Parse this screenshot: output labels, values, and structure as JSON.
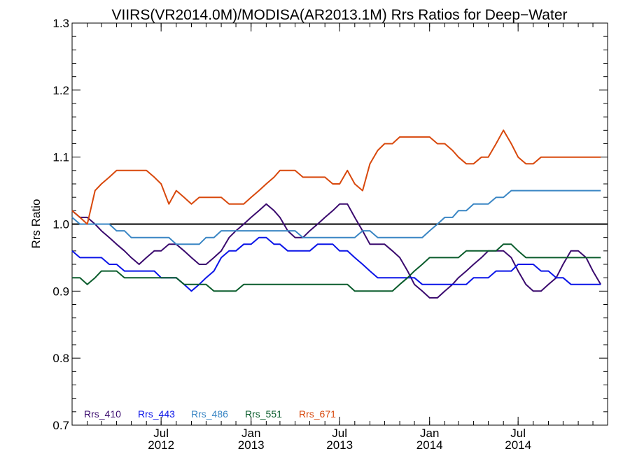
{
  "chart_data": {
    "type": "line",
    "title": "VIIRS(VR2014.0M)/MODISA(AR2013.1M)  Rrs Ratios for Deep−Water",
    "xlabel": "",
    "ylabel": "Rrs Ratio",
    "ylim": [
      0.7,
      1.3
    ],
    "xlim": [
      "2012-01-01",
      "2014-12-31"
    ],
    "y_ticks": [
      {
        "value": 0.7,
        "label": "0.7"
      },
      {
        "value": 0.8,
        "label": "0.8"
      },
      {
        "value": 0.9,
        "label": "0.9"
      },
      {
        "value": 1.0,
        "label": "1.0"
      },
      {
        "value": 1.1,
        "label": "1.1"
      },
      {
        "value": 1.2,
        "label": "1.2"
      },
      {
        "value": 1.3,
        "label": "1.3"
      }
    ],
    "x_ticks": [
      {
        "date": "2012-07-01",
        "month": "Jul",
        "year": "2012"
      },
      {
        "date": "2013-01-01",
        "month": "Jan",
        "year": "2013"
      },
      {
        "date": "2013-07-01",
        "month": "Jul",
        "year": "2013"
      },
      {
        "date": "2014-01-01",
        "month": "Jan",
        "year": "2014"
      },
      {
        "date": "2014-07-01",
        "month": "Jul",
        "year": "2014"
      }
    ],
    "reference_line": 1.0,
    "grid": false,
    "legend_position": "bottom-left",
    "x": [
      "2012-01-01",
      "2012-01-17",
      "2012-02-01",
      "2012-02-17",
      "2012-03-01",
      "2012-03-17",
      "2012-04-01",
      "2012-04-17",
      "2012-05-01",
      "2012-05-17",
      "2012-06-01",
      "2012-06-17",
      "2012-07-01",
      "2012-07-17",
      "2012-08-01",
      "2012-08-17",
      "2012-09-01",
      "2012-09-17",
      "2012-10-01",
      "2012-10-17",
      "2012-11-01",
      "2012-11-17",
      "2012-12-01",
      "2012-12-17",
      "2013-01-01",
      "2013-01-17",
      "2013-02-01",
      "2013-02-17",
      "2013-03-01",
      "2013-03-17",
      "2013-04-01",
      "2013-04-17",
      "2013-05-01",
      "2013-05-17",
      "2013-06-01",
      "2013-06-17",
      "2013-07-01",
      "2013-07-17",
      "2013-08-01",
      "2013-08-17",
      "2013-09-01",
      "2013-09-17",
      "2013-10-01",
      "2013-10-17",
      "2013-11-01",
      "2013-11-17",
      "2013-12-01",
      "2013-12-17",
      "2014-01-01",
      "2014-01-17",
      "2014-02-01",
      "2014-02-17",
      "2014-03-01",
      "2014-03-17",
      "2014-04-01",
      "2014-04-17",
      "2014-05-01",
      "2014-05-17",
      "2014-06-01",
      "2014-06-17",
      "2014-07-01",
      "2014-07-17",
      "2014-08-01",
      "2014-08-17",
      "2014-09-01",
      "2014-09-17",
      "2014-10-01",
      "2014-10-17",
      "2014-11-01",
      "2014-11-17",
      "2014-12-01",
      "2014-12-17"
    ],
    "series": [
      {
        "name": "Rrs_410",
        "color": "#3a0a6e",
        "values": [
          1.02,
          1.01,
          1.01,
          1.0,
          0.99,
          0.98,
          0.97,
          0.96,
          0.95,
          0.94,
          0.95,
          0.96,
          0.96,
          0.97,
          0.97,
          0.96,
          0.95,
          0.94,
          0.94,
          0.95,
          0.96,
          0.98,
          0.99,
          1.0,
          1.01,
          1.02,
          1.03,
          1.02,
          1.01,
          0.99,
          0.98,
          0.98,
          0.99,
          1.0,
          1.01,
          1.02,
          1.03,
          1.03,
          1.01,
          0.99,
          0.97,
          0.97,
          0.97,
          0.96,
          0.95,
          0.93,
          0.91,
          0.9,
          0.89,
          0.89,
          0.9,
          0.91,
          0.92,
          0.93,
          0.94,
          0.95,
          0.96,
          0.96,
          0.96,
          0.95,
          0.93,
          0.91,
          0.9,
          0.9,
          0.91,
          0.92,
          0.94,
          0.96,
          0.96,
          0.95,
          0.93,
          0.91
        ]
      },
      {
        "name": "Rrs_443",
        "color": "#0a14e8",
        "values": [
          0.96,
          0.95,
          0.95,
          0.95,
          0.95,
          0.94,
          0.94,
          0.93,
          0.93,
          0.93,
          0.93,
          0.93,
          0.92,
          0.92,
          0.92,
          0.91,
          0.9,
          0.91,
          0.92,
          0.93,
          0.95,
          0.96,
          0.96,
          0.97,
          0.97,
          0.98,
          0.98,
          0.97,
          0.97,
          0.96,
          0.96,
          0.96,
          0.96,
          0.97,
          0.97,
          0.97,
          0.96,
          0.96,
          0.95,
          0.94,
          0.93,
          0.92,
          0.92,
          0.92,
          0.92,
          0.92,
          0.92,
          0.91,
          0.91,
          0.91,
          0.91,
          0.91,
          0.91,
          0.91,
          0.92,
          0.92,
          0.92,
          0.93,
          0.93,
          0.93,
          0.94,
          0.94,
          0.94,
          0.93,
          0.93,
          0.92,
          0.92,
          0.91,
          0.91,
          0.91,
          0.91,
          0.91
        ]
      },
      {
        "name": "Rrs_486",
        "color": "#3a86c4",
        "values": [
          1.01,
          1.0,
          1.0,
          1.0,
          1.0,
          1.0,
          0.99,
          0.99,
          0.98,
          0.98,
          0.98,
          0.98,
          0.98,
          0.98,
          0.97,
          0.97,
          0.97,
          0.97,
          0.98,
          0.98,
          0.99,
          0.99,
          0.99,
          0.99,
          0.99,
          0.99,
          0.99,
          0.99,
          0.99,
          0.99,
          0.99,
          0.98,
          0.98,
          0.98,
          0.98,
          0.98,
          0.98,
          0.98,
          0.98,
          0.99,
          0.99,
          0.98,
          0.98,
          0.98,
          0.98,
          0.98,
          0.98,
          0.98,
          0.99,
          1.0,
          1.01,
          1.01,
          1.02,
          1.02,
          1.03,
          1.03,
          1.03,
          1.04,
          1.04,
          1.05,
          1.05,
          1.05,
          1.05,
          1.05,
          1.05,
          1.05,
          1.05,
          1.05,
          1.05,
          1.05,
          1.05,
          1.05
        ]
      },
      {
        "name": "Rrs_551",
        "color": "#0a5c2c",
        "values": [
          0.92,
          0.92,
          0.91,
          0.92,
          0.93,
          0.93,
          0.93,
          0.92,
          0.92,
          0.92,
          0.92,
          0.92,
          0.92,
          0.92,
          0.92,
          0.91,
          0.91,
          0.91,
          0.91,
          0.9,
          0.9,
          0.9,
          0.9,
          0.91,
          0.91,
          0.91,
          0.91,
          0.91,
          0.91,
          0.91,
          0.91,
          0.91,
          0.91,
          0.91,
          0.91,
          0.91,
          0.91,
          0.91,
          0.9,
          0.9,
          0.9,
          0.9,
          0.9,
          0.9,
          0.91,
          0.92,
          0.93,
          0.94,
          0.95,
          0.95,
          0.95,
          0.95,
          0.95,
          0.96,
          0.96,
          0.96,
          0.96,
          0.96,
          0.97,
          0.97,
          0.96,
          0.95,
          0.95,
          0.95,
          0.95,
          0.95,
          0.95,
          0.95,
          0.95,
          0.95,
          0.95,
          0.95
        ]
      },
      {
        "name": "Rrs_671",
        "color": "#d8480c",
        "values": [
          1.02,
          1.01,
          1.0,
          1.05,
          1.06,
          1.07,
          1.08,
          1.08,
          1.08,
          1.08,
          1.08,
          1.07,
          1.06,
          1.03,
          1.05,
          1.04,
          1.03,
          1.04,
          1.04,
          1.04,
          1.04,
          1.03,
          1.03,
          1.03,
          1.04,
          1.05,
          1.06,
          1.07,
          1.08,
          1.08,
          1.08,
          1.07,
          1.07,
          1.07,
          1.07,
          1.06,
          1.06,
          1.08,
          1.06,
          1.05,
          1.09,
          1.11,
          1.12,
          1.12,
          1.13,
          1.13,
          1.13,
          1.13,
          1.13,
          1.12,
          1.12,
          1.11,
          1.1,
          1.09,
          1.09,
          1.1,
          1.1,
          1.12,
          1.14,
          1.12,
          1.1,
          1.09,
          1.09,
          1.1,
          1.1,
          1.1,
          1.1,
          1.1,
          1.1,
          1.1,
          1.1,
          1.1
        ]
      }
    ]
  }
}
